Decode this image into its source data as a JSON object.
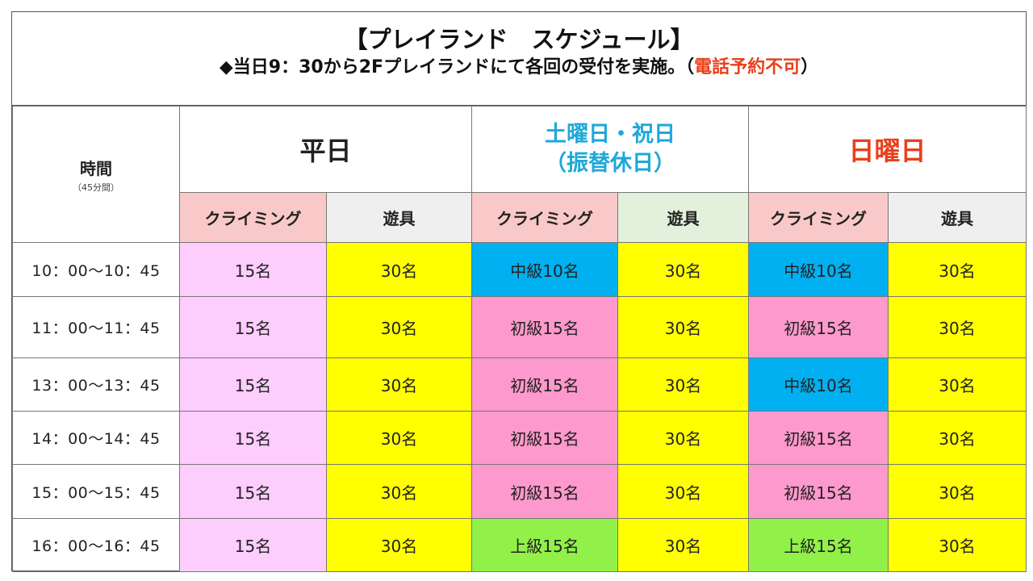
{
  "header": {
    "title": "【プレイランド　スケジュール】",
    "subtitle_main": "◆当日9：30から2Fプレイランドにて各回の受付を実施。（",
    "subtitle_warn": "電話予約不可",
    "subtitle_end": "）"
  },
  "columns": {
    "time_label": "時間",
    "time_note": "（45分間）",
    "weekday": "平日",
    "saturday_line1": "土曜日・祝日",
    "saturday_line2": "（振替休日）",
    "sunday": "日曜日",
    "climbing": "クライミング",
    "play": "遊具"
  },
  "rows": [
    {
      "time": "10：00〜10：45",
      "weekday_climb": "15名",
      "weekday_play": "30名",
      "sat_climb": "中級10名",
      "sat_play": "30名",
      "sun_climb": "中級10名",
      "sun_play": "30名"
    },
    {
      "time": "11：00〜11：45",
      "weekday_climb": "15名",
      "weekday_play": "30名",
      "sat_climb": "初級15名",
      "sat_play": "30名",
      "sun_climb": "初級15名",
      "sun_play": "30名"
    },
    {
      "time": "13：00〜13：45",
      "weekday_climb": "15名",
      "weekday_play": "30名",
      "sat_climb": "初級15名",
      "sat_play": "30名",
      "sun_climb": "中級10名",
      "sun_play": "30名"
    },
    {
      "time": "14：00〜14：45",
      "weekday_climb": "15名",
      "weekday_play": "30名",
      "sat_climb": "初級15名",
      "sat_play": "30名",
      "sun_climb": "初級15名",
      "sun_play": "30名"
    },
    {
      "time": "15：00〜15：45",
      "weekday_climb": "15名",
      "weekday_play": "30名",
      "sat_climb": "初級15名",
      "sat_play": "30名",
      "sun_climb": "初級15名",
      "sun_play": "30名"
    },
    {
      "time": "16：00〜16：45",
      "weekday_climb": "15名",
      "weekday_play": "30名",
      "sat_climb": "上級15名",
      "sat_play": "30名",
      "sun_climb": "上級15名",
      "sun_play": "30名"
    }
  ],
  "colors": {
    "weekday_climb": "#fdcdfd",
    "play": "#ffff00",
    "intermediate": "#00b0f0",
    "beginner": "#fd99cc",
    "advanced": "#92f148",
    "saturday_header": "#1ea8d8",
    "sunday_header": "#e8401c"
  }
}
